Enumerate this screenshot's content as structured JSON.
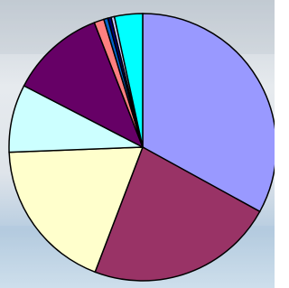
{
  "chart_data": {
    "type": "pie",
    "values": [
      33,
      22.8,
      18.6,
      8.2,
      11.5,
      1.2,
      0.5,
      0.4,
      0.4,
      3.4
    ],
    "colors": [
      "#9999ff",
      "#993366",
      "#ffffcc",
      "#ccffff",
      "#660066",
      "#ff8080",
      "#0066cc",
      "#000080",
      "#ccccff",
      "#00ffff"
    ]
  }
}
